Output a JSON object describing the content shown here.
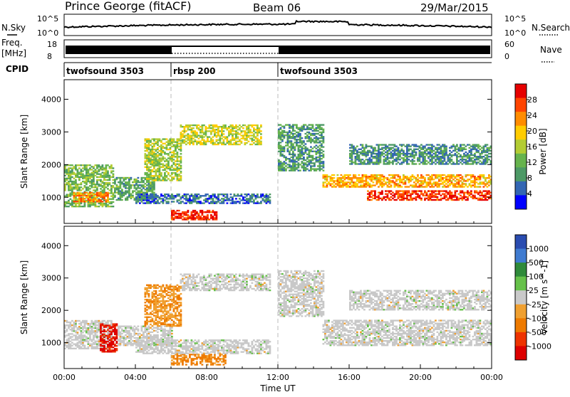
{
  "header": {
    "station": "Prince George (fitACF)",
    "beam": "Beam 06",
    "date": "29/Mar/2015"
  },
  "top_panels": {
    "nsky_label": "N.Sky",
    "nsky_ticks": [
      "10^5",
      "10^0"
    ],
    "nsearch_label": "N.Search",
    "nsearch_ticks": [
      "10^5",
      "10^0"
    ],
    "freq_label_1": "Freq.",
    "freq_label_2": "[MHz]",
    "freq_ticks": [
      "18",
      "8"
    ],
    "nave_label": "Nave",
    "nave_ticks": [
      "60",
      "0"
    ],
    "cpid_label": "CPID"
  },
  "cpid_segments": [
    {
      "label": "twofsound 3503",
      "start_hour": 0,
      "end_hour": 6
    },
    {
      "label": "rbsp 200",
      "start_hour": 6,
      "end_hour": 12
    },
    {
      "label": "twofsound 3503",
      "start_hour": 12,
      "end_hour": 24
    }
  ],
  "colors": {
    "power": [
      "#0000ff",
      "#3366b3",
      "#4d9966",
      "#66b34d",
      "#b3cc33",
      "#ffcc00",
      "#ff8c00",
      "#ff4400",
      "#e60000"
    ],
    "velocity": [
      "#2a4cb0",
      "#3f7bd0",
      "#2f8a3a",
      "#66c14a",
      "#c9c9c9",
      "#f0a030",
      "#ee7a00",
      "#ee3300",
      "#dd0000"
    ],
    "gray_scatter": "#c8c8c8"
  },
  "chart_data": [
    {
      "type": "heatmap",
      "title": "",
      "xlabel": "",
      "ylabel": "Slant Range [km]",
      "xlim": [
        0,
        24
      ],
      "ylim": [
        200,
        4600
      ],
      "x_ticks": [
        0,
        4,
        8,
        12,
        16,
        20,
        24
      ],
      "y_ticks": [
        1000,
        2000,
        3000,
        4000
      ],
      "colorbar": {
        "label": "Power [dB]",
        "ticks": [
          "4",
          "8",
          "12",
          "16",
          "20",
          "24",
          "28"
        ],
        "range": [
          0,
          30
        ]
      },
      "bands": [
        {
          "t_start": 0.0,
          "t_end": 2.8,
          "range_low": 700,
          "range_high": 2000,
          "value": 12
        },
        {
          "t_start": 0.5,
          "t_end": 2.5,
          "range_low": 850,
          "range_high": 1150,
          "value": 22
        },
        {
          "t_start": 2.8,
          "t_end": 5.0,
          "range_low": 900,
          "range_high": 1600,
          "value": 10
        },
        {
          "t_start": 4.5,
          "t_end": 6.5,
          "range_low": 1500,
          "range_high": 2800,
          "value": 14
        },
        {
          "t_start": 6.5,
          "t_end": 11.0,
          "range_low": 2600,
          "range_high": 3200,
          "value": 16
        },
        {
          "t_start": 6.0,
          "t_end": 8.5,
          "range_low": 300,
          "range_high": 600,
          "value": 27
        },
        {
          "t_start": 4.0,
          "t_end": 11.5,
          "range_low": 800,
          "range_high": 1100,
          "value": 6
        },
        {
          "t_start": 12.0,
          "t_end": 14.5,
          "range_low": 1800,
          "range_high": 3200,
          "value": 9
        },
        {
          "t_start": 14.5,
          "t_end": 24.0,
          "range_low": 1300,
          "range_high": 1700,
          "value": 20
        },
        {
          "t_start": 17.0,
          "t_end": 24.0,
          "range_low": 900,
          "range_high": 1200,
          "value": 26
        },
        {
          "t_start": 16.0,
          "t_end": 24.0,
          "range_low": 2000,
          "range_high": 2600,
          "value": 8
        }
      ]
    },
    {
      "type": "heatmap",
      "title": "",
      "xlabel": "Time UT",
      "ylabel": "Slant Range [km]",
      "xlim": [
        0,
        24
      ],
      "ylim": [
        200,
        4600
      ],
      "x_tick_labels": [
        "00:00",
        "04:00",
        "08:00",
        "12:00",
        "16:00",
        "20:00",
        "00:00"
      ],
      "y_ticks": [
        1000,
        2000,
        3000,
        4000
      ],
      "colorbar": {
        "label": "Velocity [m s^-1]",
        "ticks": [
          "1000",
          "500",
          "100",
          "25",
          "-25",
          "-100",
          "-500",
          "-1000"
        ]
      },
      "bands": [
        {
          "t_start": 0.0,
          "t_end": 2.8,
          "range_low": 800,
          "range_high": 1700,
          "value": 0
        },
        {
          "t_start": 2.0,
          "t_end": 3.0,
          "range_low": 700,
          "range_high": 1600,
          "value": -1000
        },
        {
          "t_start": 3.0,
          "t_end": 6.0,
          "range_low": 900,
          "range_high": 1500,
          "value": 0
        },
        {
          "t_start": 4.5,
          "t_end": 6.5,
          "range_low": 1500,
          "range_high": 2800,
          "value": -100
        },
        {
          "t_start": 6.5,
          "t_end": 11.5,
          "range_low": 2600,
          "range_high": 3100,
          "value": 0
        },
        {
          "t_start": 6.0,
          "t_end": 9.0,
          "range_low": 300,
          "range_high": 650,
          "value": -500
        },
        {
          "t_start": 4.0,
          "t_end": 11.5,
          "range_low": 650,
          "range_high": 1100,
          "value": 0
        },
        {
          "t_start": 12.0,
          "t_end": 14.5,
          "range_low": 1800,
          "range_high": 3200,
          "value": 0
        },
        {
          "t_start": 14.5,
          "t_end": 24.0,
          "range_low": 900,
          "range_high": 1700,
          "value": 0
        },
        {
          "t_start": 16.0,
          "t_end": 24.0,
          "range_low": 2000,
          "range_high": 2600,
          "value": 0
        }
      ]
    }
  ]
}
